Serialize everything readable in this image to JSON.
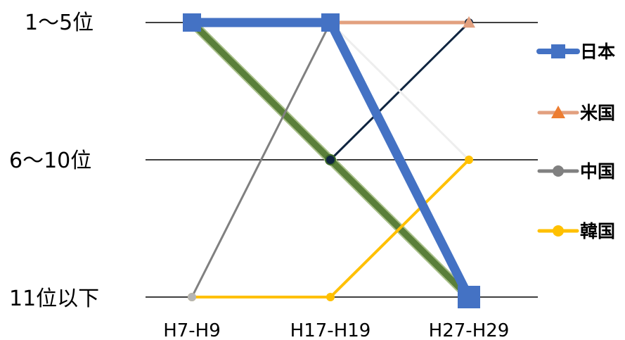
{
  "chart_data": {
    "type": "line",
    "title": "",
    "xlabel": "",
    "ylabel": "",
    "categories": [
      "H7-H9",
      "H17-H19",
      "H27-H29"
    ],
    "y_levels": [
      "1～5位",
      "6～10位",
      "11位以下"
    ],
    "grid": true,
    "legend_position": "right",
    "series": [
      {
        "name": "",
        "values": [
          2,
          1,
          0
        ],
        "color": "#5a7f3a",
        "marker": "circle",
        "legend": false
      },
      {
        "name": "",
        "values": [
          null,
          1,
          2
        ],
        "color": "#0f2540",
        "marker": "circle",
        "legend": false
      },
      {
        "name": "",
        "values": [
          null,
          2,
          1
        ],
        "color": "#eeeeee",
        "marker": "none",
        "legend": false
      },
      {
        "name": "米国",
        "values": [
          2,
          2,
          2
        ],
        "color": "#e2a07f",
        "marker": "triangle",
        "legend": true
      },
      {
        "name": "韓国",
        "values": [
          0,
          0,
          1
        ],
        "color": "#ffc000",
        "marker": "circle",
        "legend": true
      },
      {
        "name": "中国",
        "values": [
          0,
          2,
          null
        ],
        "color": "#808080",
        "marker": "circle",
        "legend": true
      },
      {
        "name": "日本",
        "values": [
          2,
          2,
          0
        ],
        "color": "#4472c4",
        "marker": "square",
        "legend": true
      }
    ],
    "legend_order": [
      "日本",
      "米国",
      "中国",
      "韓国"
    ]
  }
}
